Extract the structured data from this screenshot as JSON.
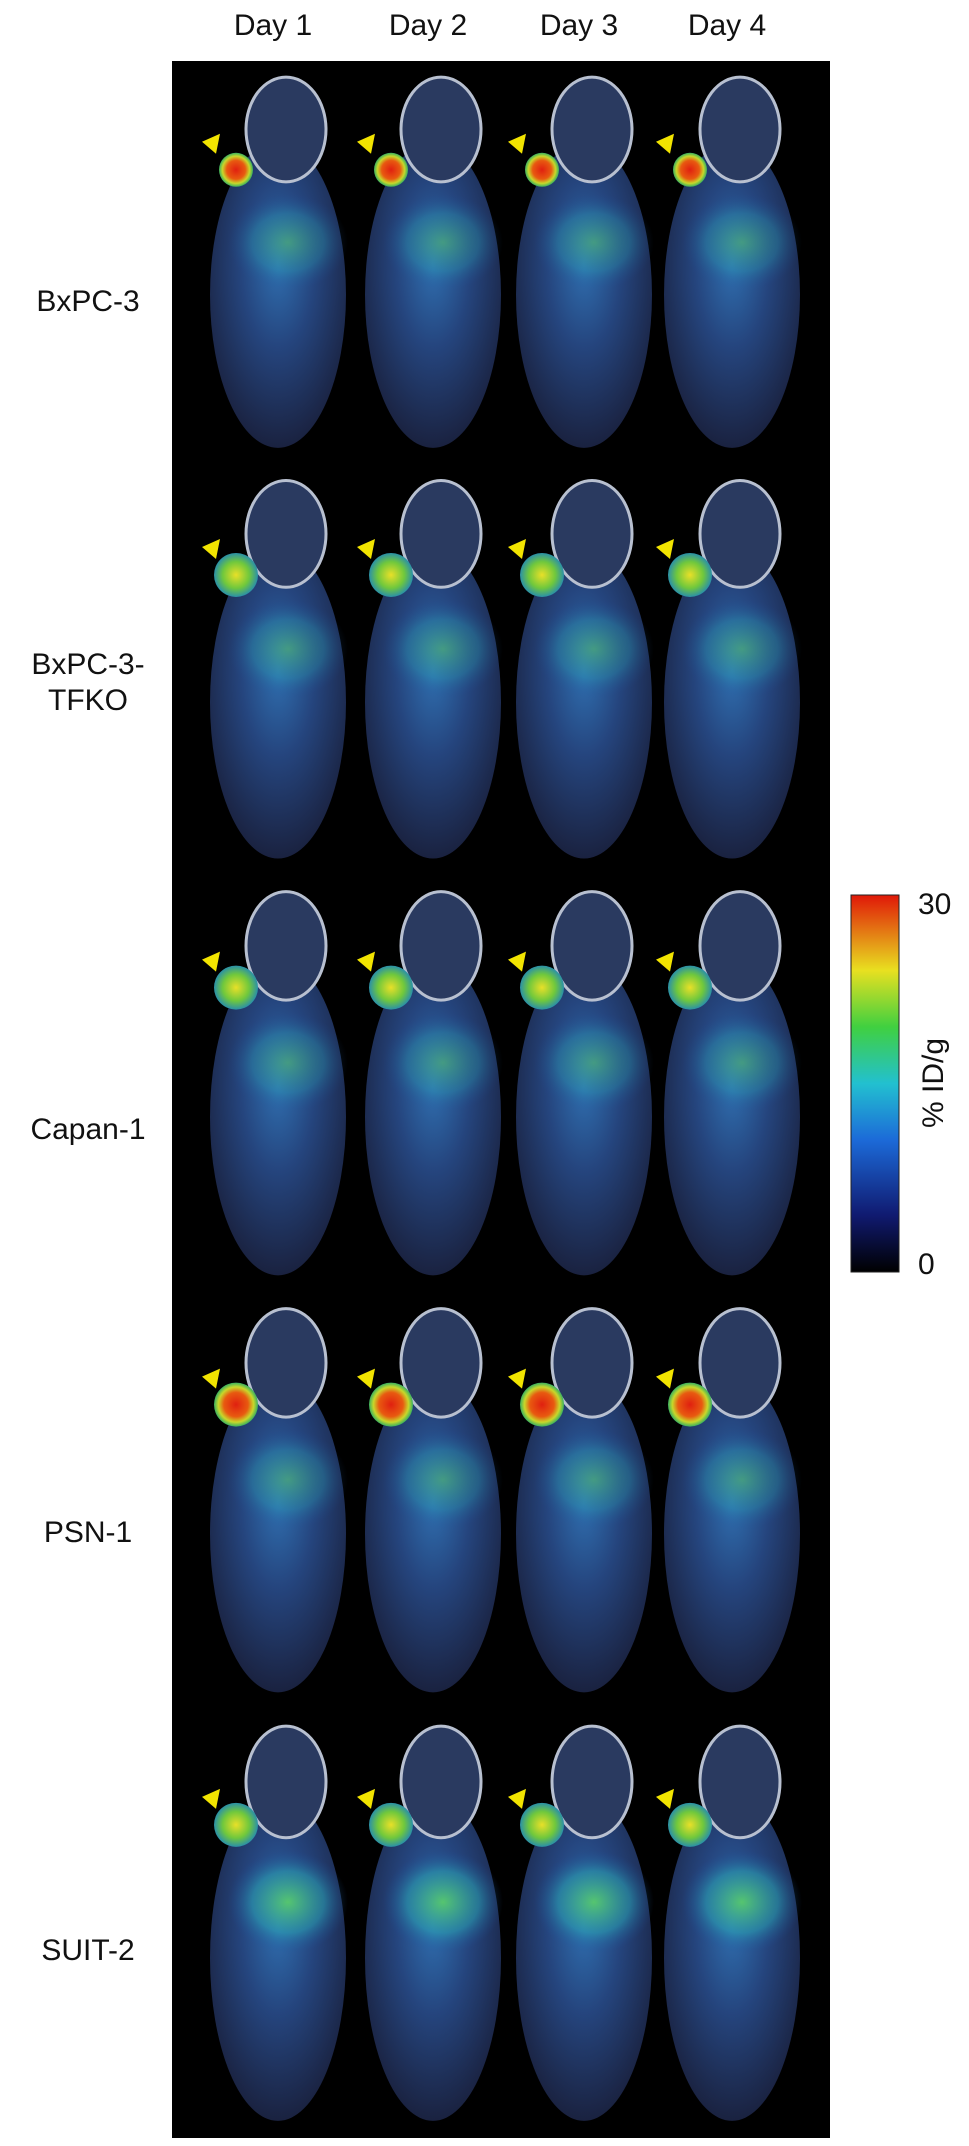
{
  "columns": [
    "Day 1",
    "Day 2",
    "Day 3",
    "Day 4"
  ],
  "rows": [
    "BxPC-3",
    "BxPC-3-\nTFKO",
    "Capan-1",
    "PSN-1",
    "SUIT-2"
  ],
  "colorbar": {
    "max": 30,
    "min": 0,
    "label": "% ID/g"
  }
}
